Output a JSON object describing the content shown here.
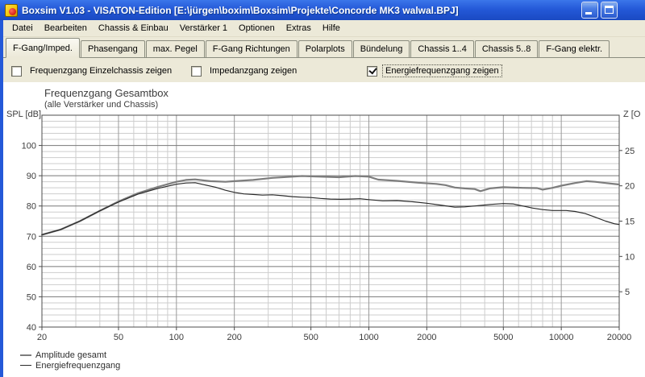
{
  "window": {
    "title": "Boxsim V1.03 - VISATON-Edition [E:\\jürgen\\boxim\\Boxsim\\Projekte\\Concorde MK3 walwal.BPJ]"
  },
  "menu": {
    "items": [
      "Datei",
      "Bearbeiten",
      "Chassis & Einbau",
      "Verstärker 1",
      "Optionen",
      "Extras",
      "Hilfe"
    ]
  },
  "tabs": {
    "active": "F-Gang/Imped.",
    "items": [
      "F-Gang/Imped.",
      "Phasengang",
      "max. Pegel",
      "F-Gang Richtungen",
      "Polarplots",
      "Bündelung",
      "Chassis 1..4",
      "Chassis 5..8",
      "F-Gang elektr."
    ]
  },
  "controls": {
    "checkboxes": [
      {
        "label": "Frequenzgang Einzelchassis zeigen",
        "checked": false,
        "focused": false
      },
      {
        "label": "Impedanzgang zeigen",
        "checked": false,
        "focused": false
      },
      {
        "label": "Energiefrequenzgang zeigen",
        "checked": true,
        "focused": true
      }
    ]
  },
  "chart_data": {
    "type": "line",
    "title": "Frequenzgang Gesamtbox",
    "subtitle": "(alle Verstärker und Chassis)",
    "y_left_label": "SPL [dB]",
    "y_right_label": "Z [O",
    "x_scale": "log",
    "x_range": [
      20,
      20000
    ],
    "x_ticks": [
      20,
      50,
      100,
      200,
      500,
      1000,
      2000,
      5000,
      10000,
      20000
    ],
    "y_left_range": [
      40,
      110
    ],
    "y_left_ticks": [
      40,
      50,
      60,
      70,
      80,
      90,
      100
    ],
    "y_left_minor_step": 2,
    "y_right_range": [
      0,
      30
    ],
    "y_right_ticks": [
      5,
      10,
      15,
      20,
      25
    ],
    "grid": true,
    "legend_position": "bottom-left",
    "colors": {
      "grid_minor": "#cdcdcd",
      "grid_labeled": "#9a9a9a",
      "grid_major": "#787878",
      "frame": "#4c4c4c"
    },
    "series": [
      {
        "name": "Amplitude gesamt",
        "color": "#7d7d7d",
        "width": 2.2,
        "points": [
          [
            20,
            70.5
          ],
          [
            25,
            72.2
          ],
          [
            31.5,
            75.0
          ],
          [
            40,
            78.4
          ],
          [
            50,
            81.5
          ],
          [
            63,
            84.2
          ],
          [
            80,
            86.3
          ],
          [
            100,
            88.0
          ],
          [
            112,
            88.6
          ],
          [
            125,
            88.8
          ],
          [
            150,
            88.2
          ],
          [
            180,
            88.0
          ],
          [
            200,
            88.2
          ],
          [
            250,
            88.6
          ],
          [
            315,
            89.3
          ],
          [
            400,
            89.7
          ],
          [
            450,
            89.9
          ],
          [
            560,
            89.7
          ],
          [
            700,
            89.5
          ],
          [
            850,
            89.9
          ],
          [
            1000,
            89.7
          ],
          [
            1120,
            88.7
          ],
          [
            1400,
            88.3
          ],
          [
            1800,
            87.7
          ],
          [
            2240,
            87.3
          ],
          [
            2500,
            86.9
          ],
          [
            2800,
            86.1
          ],
          [
            3150,
            85.8
          ],
          [
            3550,
            85.6
          ],
          [
            3800,
            84.9
          ],
          [
            4250,
            85.8
          ],
          [
            5000,
            86.2
          ],
          [
            6300,
            86.0
          ],
          [
            7500,
            85.9
          ],
          [
            8000,
            85.4
          ],
          [
            9000,
            86.0
          ],
          [
            10000,
            86.7
          ],
          [
            11800,
            87.6
          ],
          [
            13500,
            88.2
          ],
          [
            15000,
            88.0
          ],
          [
            17000,
            87.6
          ],
          [
            20000,
            87.1
          ]
        ]
      },
      {
        "name": "Energiefrequenzgang",
        "color": "#2b2b2b",
        "width": 1.2,
        "points": [
          [
            20,
            70.5
          ],
          [
            25,
            72.2
          ],
          [
            31.5,
            75.0
          ],
          [
            40,
            78.4
          ],
          [
            50,
            81.3
          ],
          [
            63,
            83.9
          ],
          [
            80,
            85.8
          ],
          [
            100,
            87.2
          ],
          [
            112,
            87.6
          ],
          [
            125,
            87.7
          ],
          [
            140,
            87.0
          ],
          [
            160,
            86.2
          ],
          [
            180,
            85.2
          ],
          [
            200,
            84.5
          ],
          [
            224,
            84.0
          ],
          [
            250,
            83.8
          ],
          [
            280,
            83.6
          ],
          [
            315,
            83.7
          ],
          [
            355,
            83.4
          ],
          [
            400,
            83.1
          ],
          [
            450,
            82.9
          ],
          [
            500,
            82.8
          ],
          [
            560,
            82.5
          ],
          [
            630,
            82.3
          ],
          [
            710,
            82.2
          ],
          [
            800,
            82.3
          ],
          [
            900,
            82.4
          ],
          [
            1000,
            82.1
          ],
          [
            1180,
            81.7
          ],
          [
            1400,
            81.8
          ],
          [
            1700,
            81.4
          ],
          [
            2000,
            80.9
          ],
          [
            2360,
            80.3
          ],
          [
            2800,
            79.6
          ],
          [
            3150,
            79.7
          ],
          [
            3550,
            80.0
          ],
          [
            4250,
            80.5
          ],
          [
            5000,
            80.8
          ],
          [
            5600,
            80.7
          ],
          [
            6300,
            80.0
          ],
          [
            7100,
            79.3
          ],
          [
            8000,
            78.8
          ],
          [
            9000,
            78.5
          ],
          [
            10600,
            78.5
          ],
          [
            11800,
            78.2
          ],
          [
            13300,
            77.5
          ],
          [
            15000,
            76.3
          ],
          [
            17000,
            75.0
          ],
          [
            19000,
            74.1
          ],
          [
            20000,
            73.9
          ]
        ]
      }
    ]
  }
}
